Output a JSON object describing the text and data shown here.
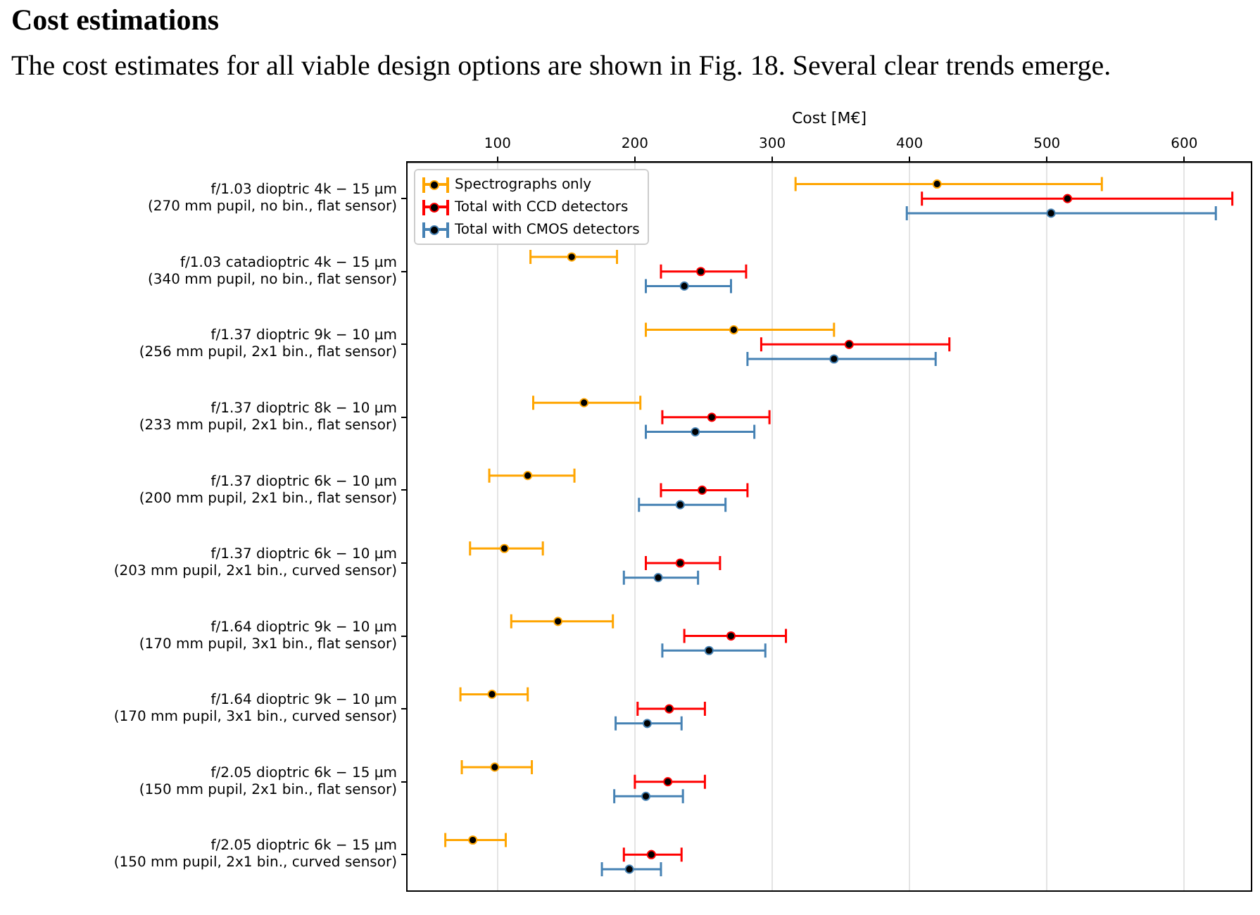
{
  "chart_data": {
    "type": "scatter",
    "title": "Cost estimations",
    "subtitle": "The cost estimates for all viable design options are shown in Fig. 18. Several clear trends emerge.",
    "xlabel": "Cost [M€]",
    "categories": [
      "f/1.03 dioptric 4k − 15 μm\n(270 mm pupil, no bin., flat sensor)",
      "f/1.03 catadioptric 4k − 15 μm\n(340 mm pupil, no bin., flat sensor)",
      "f/1.37 dioptric 9k − 10 μm\n(256 mm pupil, 2x1 bin., flat sensor)",
      "f/1.37 dioptric 8k − 10 μm\n(233 mm pupil, 2x1 bin., flat sensor)",
      "f/1.37 dioptric 6k − 10 μm\n(200 mm pupil, 2x1 bin., flat sensor)",
      "f/1.37 dioptric 6k − 10 μm\n(203 mm pupil, 2x1 bin., curved sensor)",
      "f/1.64 dioptric 9k − 10 μm\n(170 mm pupil, 3x1 bin., flat sensor)",
      "f/1.64 dioptric 9k − 10 μm\n(170 mm pupil, 3x1 bin., curved sensor)",
      "f/2.05 dioptric 6k − 15 μm\n(150 mm pupil, 2x1 bin., flat sensor)",
      "f/2.05 dioptric 6k − 15 μm\n(150 mm pupil, 2x1 bin., curved sensor)"
    ],
    "series": [
      {
        "name": "Spectrographs only",
        "color": "#ffa500",
        "values": [
          420,
          154,
          272,
          163,
          122,
          105,
          144,
          96,
          98,
          82
        ],
        "errors": [
          [
            317,
            540
          ],
          [
            124,
            187
          ],
          [
            208,
            345
          ],
          [
            126,
            204
          ],
          [
            94,
            156
          ],
          [
            80,
            133
          ],
          [
            110,
            184
          ],
          [
            73,
            122
          ],
          [
            74,
            125
          ],
          [
            62,
            106
          ]
        ]
      },
      {
        "name": "Total with CCD detectors",
        "color": "#ff0000",
        "values": [
          515,
          248,
          356,
          256,
          249,
          233,
          270,
          225,
          224,
          212
        ],
        "errors": [
          [
            409,
            635
          ],
          [
            219,
            281
          ],
          [
            292,
            429
          ],
          [
            220,
            298
          ],
          [
            219,
            282
          ],
          [
            208,
            262
          ],
          [
            236,
            310
          ],
          [
            202,
            251
          ],
          [
            200,
            251
          ],
          [
            192,
            234
          ]
        ]
      },
      {
        "name": "Total with CMOS detectors",
        "color": "#4682b4",
        "values": [
          503,
          236,
          345,
          244,
          233,
          217,
          254,
          209,
          208,
          196
        ],
        "errors": [
          [
            398,
            623
          ],
          [
            208,
            270
          ],
          [
            282,
            419
          ],
          [
            208,
            287
          ],
          [
            203,
            266
          ],
          [
            192,
            246
          ],
          [
            220,
            295
          ],
          [
            186,
            234
          ],
          [
            185,
            235
          ],
          [
            176,
            219
          ]
        ]
      }
    ],
    "orientation": "horizontal",
    "xlim": [
      34,
      649
    ],
    "xticks": [
      100,
      200,
      300,
      400,
      500,
      600
    ],
    "grid": "x",
    "legend": "top left",
    "marker": "circle"
  }
}
